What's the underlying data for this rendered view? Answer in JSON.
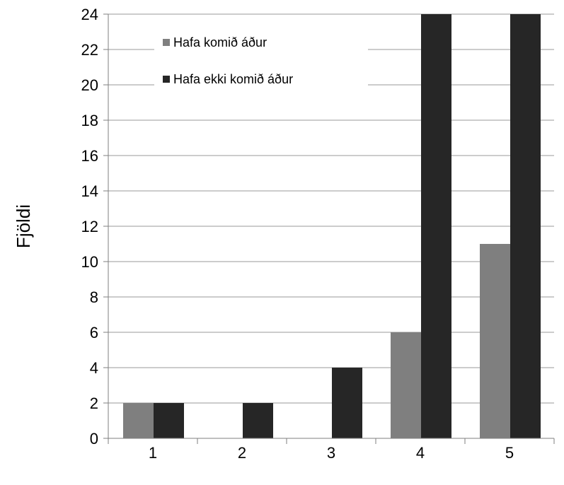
{
  "chart_data": {
    "type": "bar",
    "title": "",
    "xlabel": "",
    "ylabel": "Fjöldi",
    "categories": [
      "1",
      "2",
      "3",
      "4",
      "5"
    ],
    "series": [
      {
        "name": "Hafa komið áður",
        "values": [
          2,
          0,
          0,
          6,
          11
        ],
        "color": "#7f7f7f"
      },
      {
        "name": "Hafa ekki komið áður",
        "values": [
          2,
          2,
          4,
          24,
          24
        ],
        "color": "#262626"
      }
    ],
    "ylim": [
      0,
      24
    ],
    "yticks": [
      0,
      2,
      4,
      6,
      8,
      10,
      12,
      14,
      16,
      18,
      20,
      22,
      24
    ],
    "grid": true,
    "legend_position": "top-left inside plot"
  }
}
